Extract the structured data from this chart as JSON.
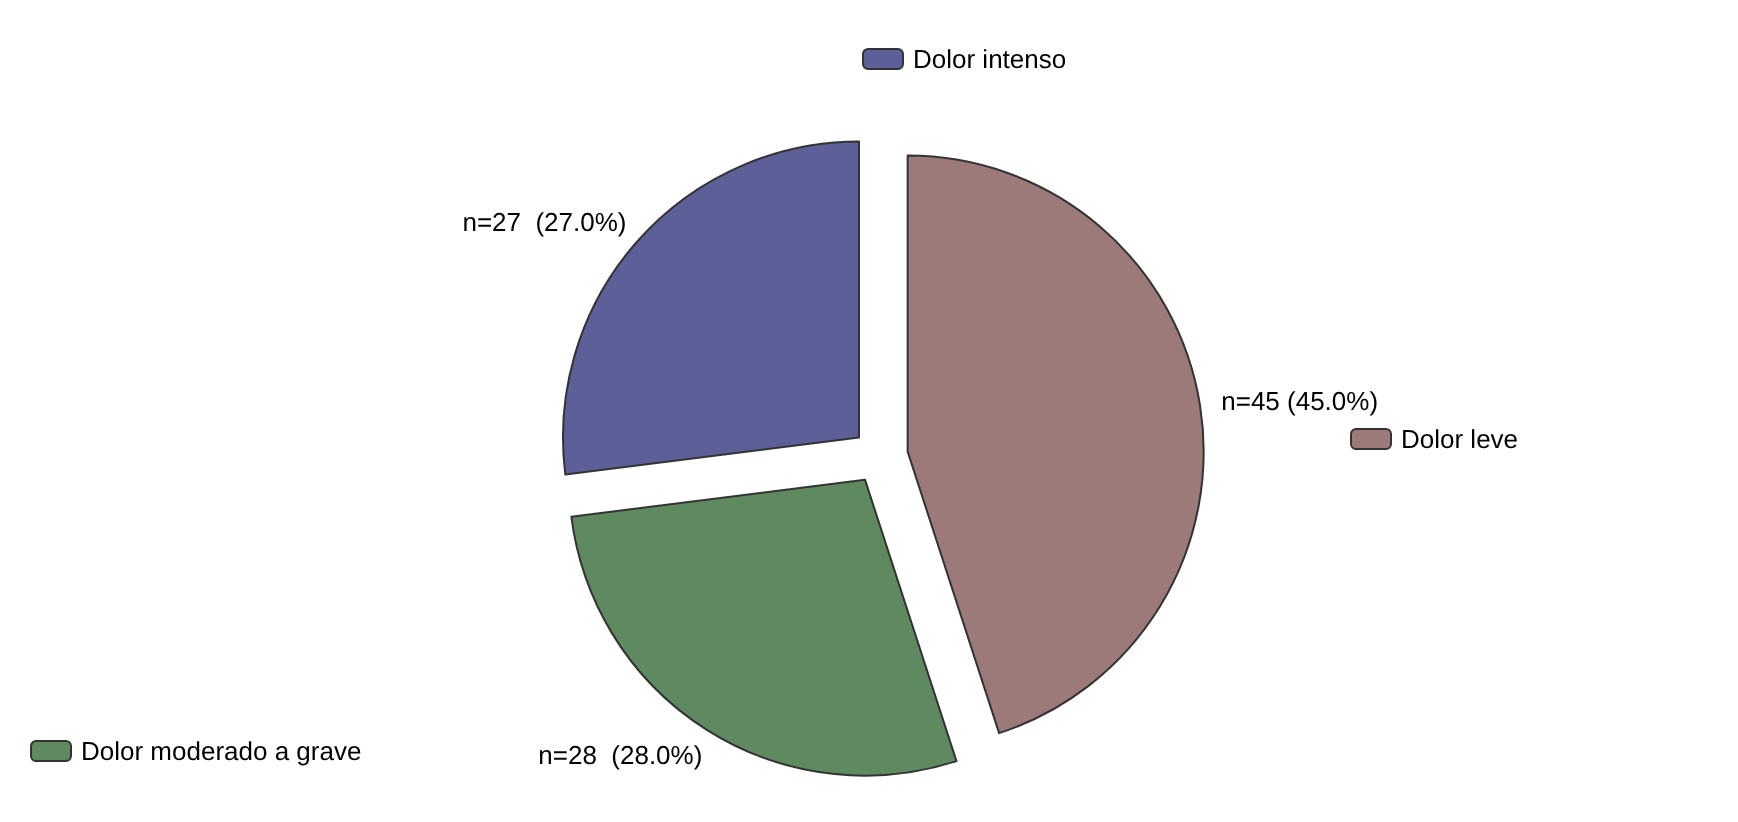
{
  "chart_data": {
    "type": "pie",
    "categories": [
      "Dolor leve",
      "Dolor moderado a grave",
      "Dolor intenso"
    ],
    "values": [
      45,
      28,
      27
    ],
    "colors": [
      "#9c7a7a",
      "#5f8a5f",
      "#5c5f98"
    ],
    "value_labels": [
      "n=45 (45.0%)",
      "n=28  (28.0%)",
      "n=27  (27.0%)"
    ],
    "legend": true
  }
}
